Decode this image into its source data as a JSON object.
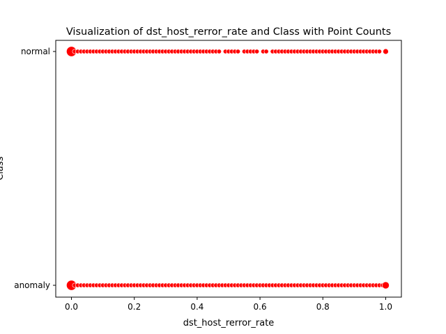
{
  "chart_data": {
    "type": "scatter",
    "title": "Visualization of dst_host_rerror_rate and Class with Point Counts",
    "xlabel": "dst_host_rerror_rate",
    "ylabel": "Class",
    "xlim": [
      -0.05,
      1.05
    ],
    "x_ticks": [
      "0.0",
      "0.2",
      "0.4",
      "0.6",
      "0.8",
      "1.0"
    ],
    "categories": [
      "normal",
      "anomaly"
    ],
    "grid": false,
    "marker_color": "#ff0000",
    "marker_edge_color": "#ffffff",
    "series": [
      {
        "category": "normal",
        "x": [
          0,
          0.01,
          0.02,
          0.03,
          0.04,
          0.05,
          0.06,
          0.07,
          0.08,
          0.09,
          0.1,
          0.11,
          0.12,
          0.13,
          0.14,
          0.15,
          0.16,
          0.17,
          0.18,
          0.19,
          0.2,
          0.21,
          0.22,
          0.23,
          0.24,
          0.25,
          0.26,
          0.27,
          0.28,
          0.29,
          0.3,
          0.31,
          0.32,
          0.33,
          0.34,
          0.35,
          0.36,
          0.37,
          0.38,
          0.39,
          0.4,
          0.41,
          0.42,
          0.43,
          0.44,
          0.45,
          0.46,
          0.47,
          0.49,
          0.5,
          0.51,
          0.52,
          0.53,
          0.55,
          0.56,
          0.57,
          0.58,
          0.59,
          0.61,
          0.62,
          0.64,
          0.65,
          0.66,
          0.67,
          0.68,
          0.69,
          0.7,
          0.71,
          0.72,
          0.73,
          0.74,
          0.75,
          0.76,
          0.77,
          0.78,
          0.79,
          0.8,
          0.81,
          0.82,
          0.83,
          0.84,
          0.85,
          0.86,
          0.87,
          0.88,
          0.89,
          0.9,
          0.91,
          0.92,
          0.93,
          0.94,
          0.95,
          0.96,
          0.97,
          0.98,
          1.0
        ],
        "count_size": [
          5,
          1,
          1,
          1,
          1,
          1,
          1,
          1,
          1,
          1,
          1,
          1,
          1,
          1,
          1,
          1,
          1,
          1,
          1,
          1,
          1,
          1,
          1,
          1,
          1,
          1,
          1,
          1,
          1,
          1,
          1,
          1,
          1,
          1,
          1,
          1,
          1,
          1,
          1,
          1,
          1,
          1,
          1,
          1,
          1,
          1,
          1,
          1,
          1,
          1,
          1,
          1,
          1,
          1,
          1,
          1,
          1,
          1,
          1,
          1,
          1,
          1,
          1,
          1,
          1,
          1,
          1,
          1,
          1,
          1,
          1,
          1,
          1,
          1,
          1,
          1,
          1,
          1,
          1,
          1,
          1,
          1,
          1,
          1,
          1,
          1,
          1,
          1,
          1,
          1,
          1,
          1,
          1,
          1,
          1,
          1.5
        ]
      },
      {
        "category": "anomaly",
        "x": [
          0,
          0.01,
          0.02,
          0.03,
          0.04,
          0.05,
          0.06,
          0.07,
          0.08,
          0.09,
          0.1,
          0.11,
          0.12,
          0.13,
          0.14,
          0.15,
          0.16,
          0.17,
          0.18,
          0.19,
          0.2,
          0.21,
          0.22,
          0.23,
          0.24,
          0.25,
          0.26,
          0.27,
          0.28,
          0.29,
          0.3,
          0.31,
          0.32,
          0.33,
          0.34,
          0.35,
          0.36,
          0.37,
          0.38,
          0.39,
          0.4,
          0.41,
          0.42,
          0.43,
          0.44,
          0.45,
          0.46,
          0.47,
          0.48,
          0.49,
          0.5,
          0.51,
          0.52,
          0.53,
          0.54,
          0.55,
          0.56,
          0.57,
          0.58,
          0.59,
          0.6,
          0.61,
          0.62,
          0.63,
          0.64,
          0.65,
          0.66,
          0.67,
          0.68,
          0.69,
          0.7,
          0.71,
          0.72,
          0.73,
          0.74,
          0.75,
          0.76,
          0.77,
          0.78,
          0.79,
          0.8,
          0.81,
          0.82,
          0.83,
          0.84,
          0.85,
          0.86,
          0.87,
          0.88,
          0.89,
          0.9,
          0.91,
          0.92,
          0.93,
          0.94,
          0.95,
          0.96,
          0.97,
          0.98,
          0.99,
          1.0
        ],
        "count_size": [
          5,
          1,
          1,
          1,
          1,
          1,
          1,
          1,
          1,
          1,
          1,
          1,
          1,
          1,
          1,
          1,
          1,
          1,
          1,
          1,
          1,
          1,
          1,
          1,
          1,
          1,
          1,
          1,
          1,
          1,
          1,
          1,
          1,
          1,
          1,
          1,
          1,
          1,
          1,
          1,
          1,
          1,
          1,
          1,
          1,
          1,
          1,
          1,
          1,
          1,
          1,
          1,
          1,
          1,
          1,
          1,
          1,
          1,
          1,
          1,
          1,
          1,
          1,
          1,
          1,
          1,
          1,
          1,
          1,
          1,
          1,
          1,
          1,
          1,
          1,
          1,
          1,
          1,
          1,
          1,
          1,
          1,
          1,
          1,
          1,
          1,
          1,
          1,
          1,
          1,
          1,
          1,
          1,
          1,
          1,
          1,
          1,
          1,
          1,
          1,
          2.5
        ]
      }
    ]
  }
}
